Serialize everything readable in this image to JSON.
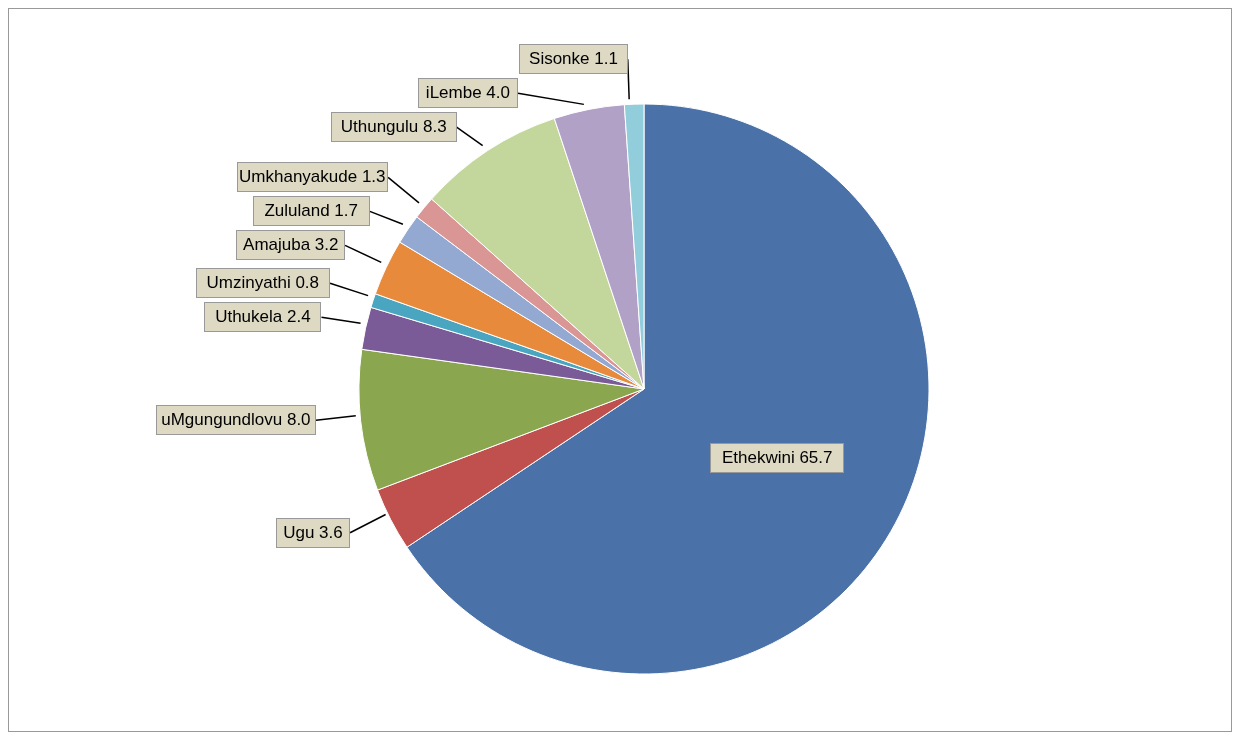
{
  "chart_data": {
    "type": "pie",
    "categories": [
      "Ethekwini",
      "Ugu",
      "uMgungundlovu",
      "Uthukela",
      "Umzinyathi",
      "Amajuba",
      "Zululand",
      "Umkhanyakude",
      "Uthungulu",
      "iLembe",
      "Sisonke"
    ],
    "values": [
      65.7,
      3.6,
      8.0,
      2.4,
      0.8,
      3.2,
      1.7,
      1.3,
      8.3,
      4.0,
      1.1
    ],
    "value_labels": [
      "65.7",
      "3.6",
      "8.0",
      "2.4",
      "0.8",
      "3.2",
      "1.7",
      "1.3",
      "8.3",
      "4.0",
      "1.1"
    ],
    "colors": [
      "#4a72a8",
      "#c0504d",
      "#8aa64f",
      "#7a5a97",
      "#4aa5c0",
      "#e88a3c",
      "#93a9d2",
      "#d99694",
      "#c3d69b",
      "#b2a1c7",
      "#92cddc"
    ],
    "legend": false
  }
}
